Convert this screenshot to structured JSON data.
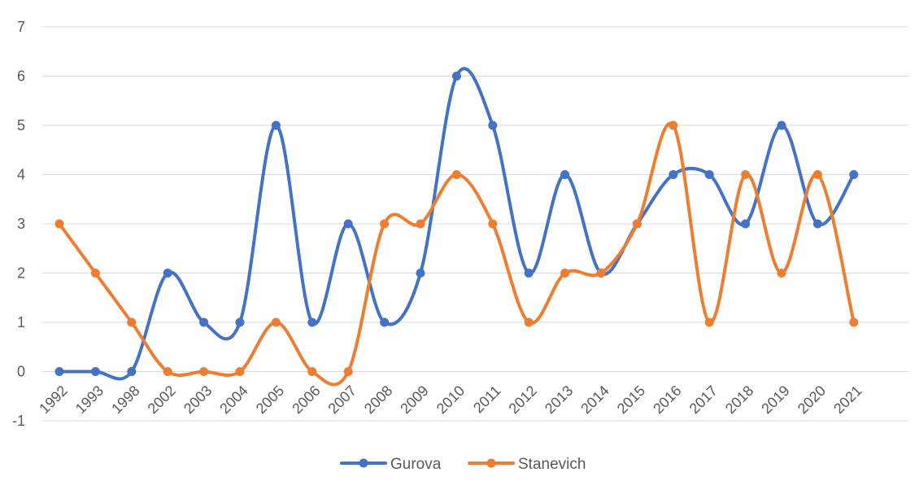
{
  "chart_data": {
    "type": "line",
    "smooth": true,
    "title": "",
    "xlabel": "",
    "ylabel": "",
    "categories": [
      "1992",
      "1993",
      "1998",
      "2002",
      "2003",
      "2004",
      "2005",
      "2006",
      "2007",
      "2008",
      "2009",
      "2010",
      "2011",
      "2012",
      "2013",
      "2014",
      "2015",
      "2016",
      "2017",
      "2018",
      "2019",
      "2020",
      "2021"
    ],
    "ylim": [
      -1,
      7
    ],
    "yticks": [
      -1,
      0,
      1,
      2,
      3,
      4,
      5,
      6,
      7
    ],
    "grid": "horizontal",
    "legend_position": "bottom",
    "series": [
      {
        "name": "Gurova",
        "color": "#4472C4",
        "values": [
          0,
          0,
          0,
          2,
          1,
          1,
          5,
          1,
          3,
          1,
          2,
          6,
          5,
          2,
          4,
          2,
          3,
          4,
          4,
          3,
          5,
          3,
          4
        ]
      },
      {
        "name": "Stanevich",
        "color": "#ED7D31",
        "values": [
          3,
          2,
          1,
          0,
          0,
          0,
          1,
          0,
          0,
          3,
          3,
          4,
          3,
          1,
          2,
          2,
          3,
          5,
          1,
          4,
          2,
          4,
          1
        ]
      }
    ]
  }
}
